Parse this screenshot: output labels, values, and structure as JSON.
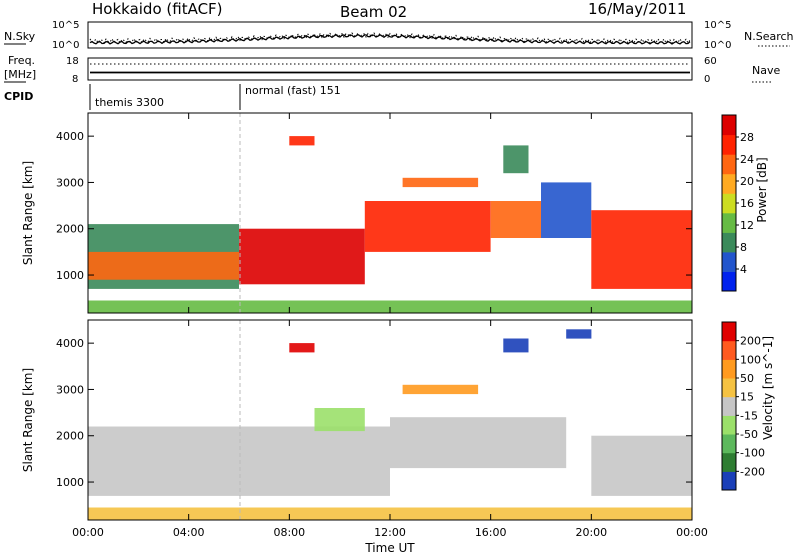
{
  "header": {
    "radar": "Hokkaido (fitACF)",
    "beam": "Beam 02",
    "date": "16/May/2011"
  },
  "strips": {
    "nsky_label": "N.Sky",
    "nsearch_label": "N.Search",
    "nsky_ticks": [
      "10^5",
      "10^0"
    ],
    "nsearch_ticks": [
      "10^5",
      "10^0"
    ],
    "freq_label": "Freq.",
    "freq_unit": "[MHz]",
    "freq_ticks": [
      "18",
      "8"
    ],
    "nave_label": "Nave",
    "nave_ticks": [
      "60",
      "0"
    ],
    "cpid_label": "CPID",
    "cpid_modes": [
      {
        "name": "themis 3300",
        "start_hour": 0,
        "end_hour": 6
      },
      {
        "name": "normal (fast) 151",
        "start_hour": 6,
        "end_hour": 24
      }
    ]
  },
  "x_axis": {
    "label": "Time UT",
    "ticks": [
      "00:00",
      "04:00",
      "08:00",
      "12:00",
      "16:00",
      "20:00",
      "00:00"
    ]
  },
  "colors": {
    "power_scale": [
      "#0022ee",
      "#2255cc",
      "#3a8a5a",
      "#66bb44",
      "#ccdd22",
      "#ffaa22",
      "#ff6611",
      "#ff2200",
      "#dd0000"
    ],
    "velocity_scale": [
      "#1a3fb8",
      "#2e7d32",
      "#5cb85c",
      "#9be06a",
      "#c6c6c6",
      "#f5c242",
      "#ff9a1f",
      "#ff5a1f",
      "#e00000"
    ]
  },
  "chart_data": [
    {
      "type": "heatmap",
      "title": "",
      "xlabel": "Time UT",
      "ylabel": "Slant Range [km]",
      "xlim": [
        0,
        24
      ],
      "ylim": [
        180,
        4500
      ],
      "yticks": [
        "1000",
        "2000",
        "3000",
        "4000"
      ],
      "colorbar": {
        "label": "Power [dB]",
        "ticks": [
          "28",
          "24",
          "20",
          "16",
          "12",
          "8",
          "4"
        ],
        "range": [
          0,
          30
        ]
      },
      "regions": [
        {
          "t0": 0.0,
          "t1": 6.0,
          "r0": 700,
          "r1": 2100,
          "value": 8
        },
        {
          "t0": 0.0,
          "t1": 6.0,
          "r0": 900,
          "r1": 1500,
          "value": 20
        },
        {
          "t0": 6.0,
          "t1": 11.0,
          "r0": 800,
          "r1": 2000,
          "value": 28
        },
        {
          "t0": 8.0,
          "t1": 9.0,
          "r0": 3800,
          "r1": 4000,
          "value": 24
        },
        {
          "t0": 11.0,
          "t1": 16.0,
          "r0": 1500,
          "r1": 2600,
          "value": 24
        },
        {
          "t0": 12.5,
          "t1": 15.5,
          "r0": 2900,
          "r1": 3100,
          "value": 20
        },
        {
          "t0": 16.0,
          "t1": 18.0,
          "r0": 1800,
          "r1": 2600,
          "value": 20
        },
        {
          "t0": 16.5,
          "t1": 17.5,
          "r0": 3200,
          "r1": 3800,
          "value": 8
        },
        {
          "t0": 18.0,
          "t1": 20.0,
          "r0": 1800,
          "r1": 3000,
          "value": 4
        },
        {
          "t0": 20.0,
          "t1": 24.0,
          "r0": 700,
          "r1": 2400,
          "value": 26
        },
        {
          "t0": 0.0,
          "t1": 24.0,
          "r0": 180,
          "r1": 450,
          "value": 12
        }
      ]
    },
    {
      "type": "heatmap",
      "title": "",
      "xlabel": "Time UT",
      "ylabel": "Slant Range [km]",
      "xlim": [
        0,
        24
      ],
      "ylim": [
        180,
        4500
      ],
      "yticks": [
        "1000",
        "2000",
        "3000",
        "4000"
      ],
      "colorbar": {
        "label": "Velocity [m s^-1]",
        "ticks": [
          "200",
          "100",
          "50",
          "15",
          "-15",
          "-50",
          "-100",
          "-200"
        ],
        "range": [
          -250,
          250
        ]
      },
      "regions": [
        {
          "t0": 0.0,
          "t1": 12.0,
          "r0": 700,
          "r1": 2200,
          "value": 0
        },
        {
          "t0": 8.0,
          "t1": 9.0,
          "r0": 3800,
          "r1": 4000,
          "value": 200
        },
        {
          "t0": 9.0,
          "t1": 11.0,
          "r0": 2100,
          "r1": 2600,
          "value": -60
        },
        {
          "t0": 12.5,
          "t1": 15.5,
          "r0": 2900,
          "r1": 3100,
          "value": 100
        },
        {
          "t0": 12.0,
          "t1": 19.0,
          "r0": 1300,
          "r1": 2400,
          "value": 0
        },
        {
          "t0": 16.5,
          "t1": 17.5,
          "r0": 3800,
          "r1": 4100,
          "value": -200
        },
        {
          "t0": 19.0,
          "t1": 20.0,
          "r0": 4100,
          "r1": 4300,
          "value": -200
        },
        {
          "t0": 20.0,
          "t1": 24.0,
          "r0": 700,
          "r1": 2000,
          "value": 0
        },
        {
          "t0": 0.0,
          "t1": 24.0,
          "r0": 180,
          "r1": 450,
          "value": 40
        }
      ]
    }
  ]
}
